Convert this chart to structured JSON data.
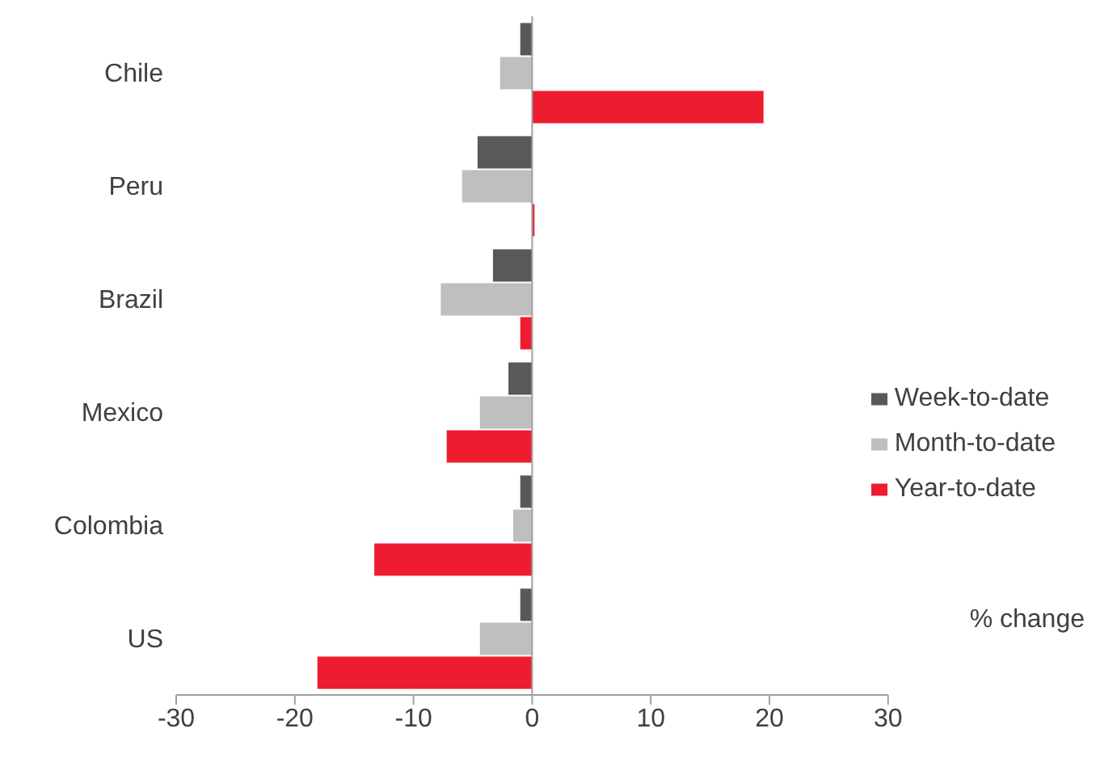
{
  "chart_data": {
    "type": "bar",
    "orientation": "horizontal",
    "xlabel": "% change",
    "categories": [
      "Chile",
      "Peru",
      "Brazil",
      "Mexico",
      "Colombia",
      "US"
    ],
    "series": [
      {
        "name": "Week-to-date",
        "color": "#595959",
        "values": [
          -1.0,
          -4.6,
          -3.3,
          -2.0,
          -1.0,
          -1.0
        ]
      },
      {
        "name": "Month-to-date",
        "color": "#bfbfbf",
        "values": [
          -2.7,
          -5.9,
          -7.7,
          -4.4,
          -1.6,
          -4.4
        ]
      },
      {
        "name": "Year-to-date",
        "color": "#ed1c2e",
        "values": [
          19.5,
          0.2,
          -1.0,
          -7.2,
          -13.3,
          -18.1
        ]
      }
    ],
    "xlim": [
      -30,
      30
    ],
    "xticks": [
      -30,
      -20,
      -10,
      0,
      10,
      20,
      30
    ],
    "ref_lines": [
      {
        "axis": "x",
        "value": 0,
        "color": "#a0a0a0"
      }
    ],
    "legend": "right"
  }
}
